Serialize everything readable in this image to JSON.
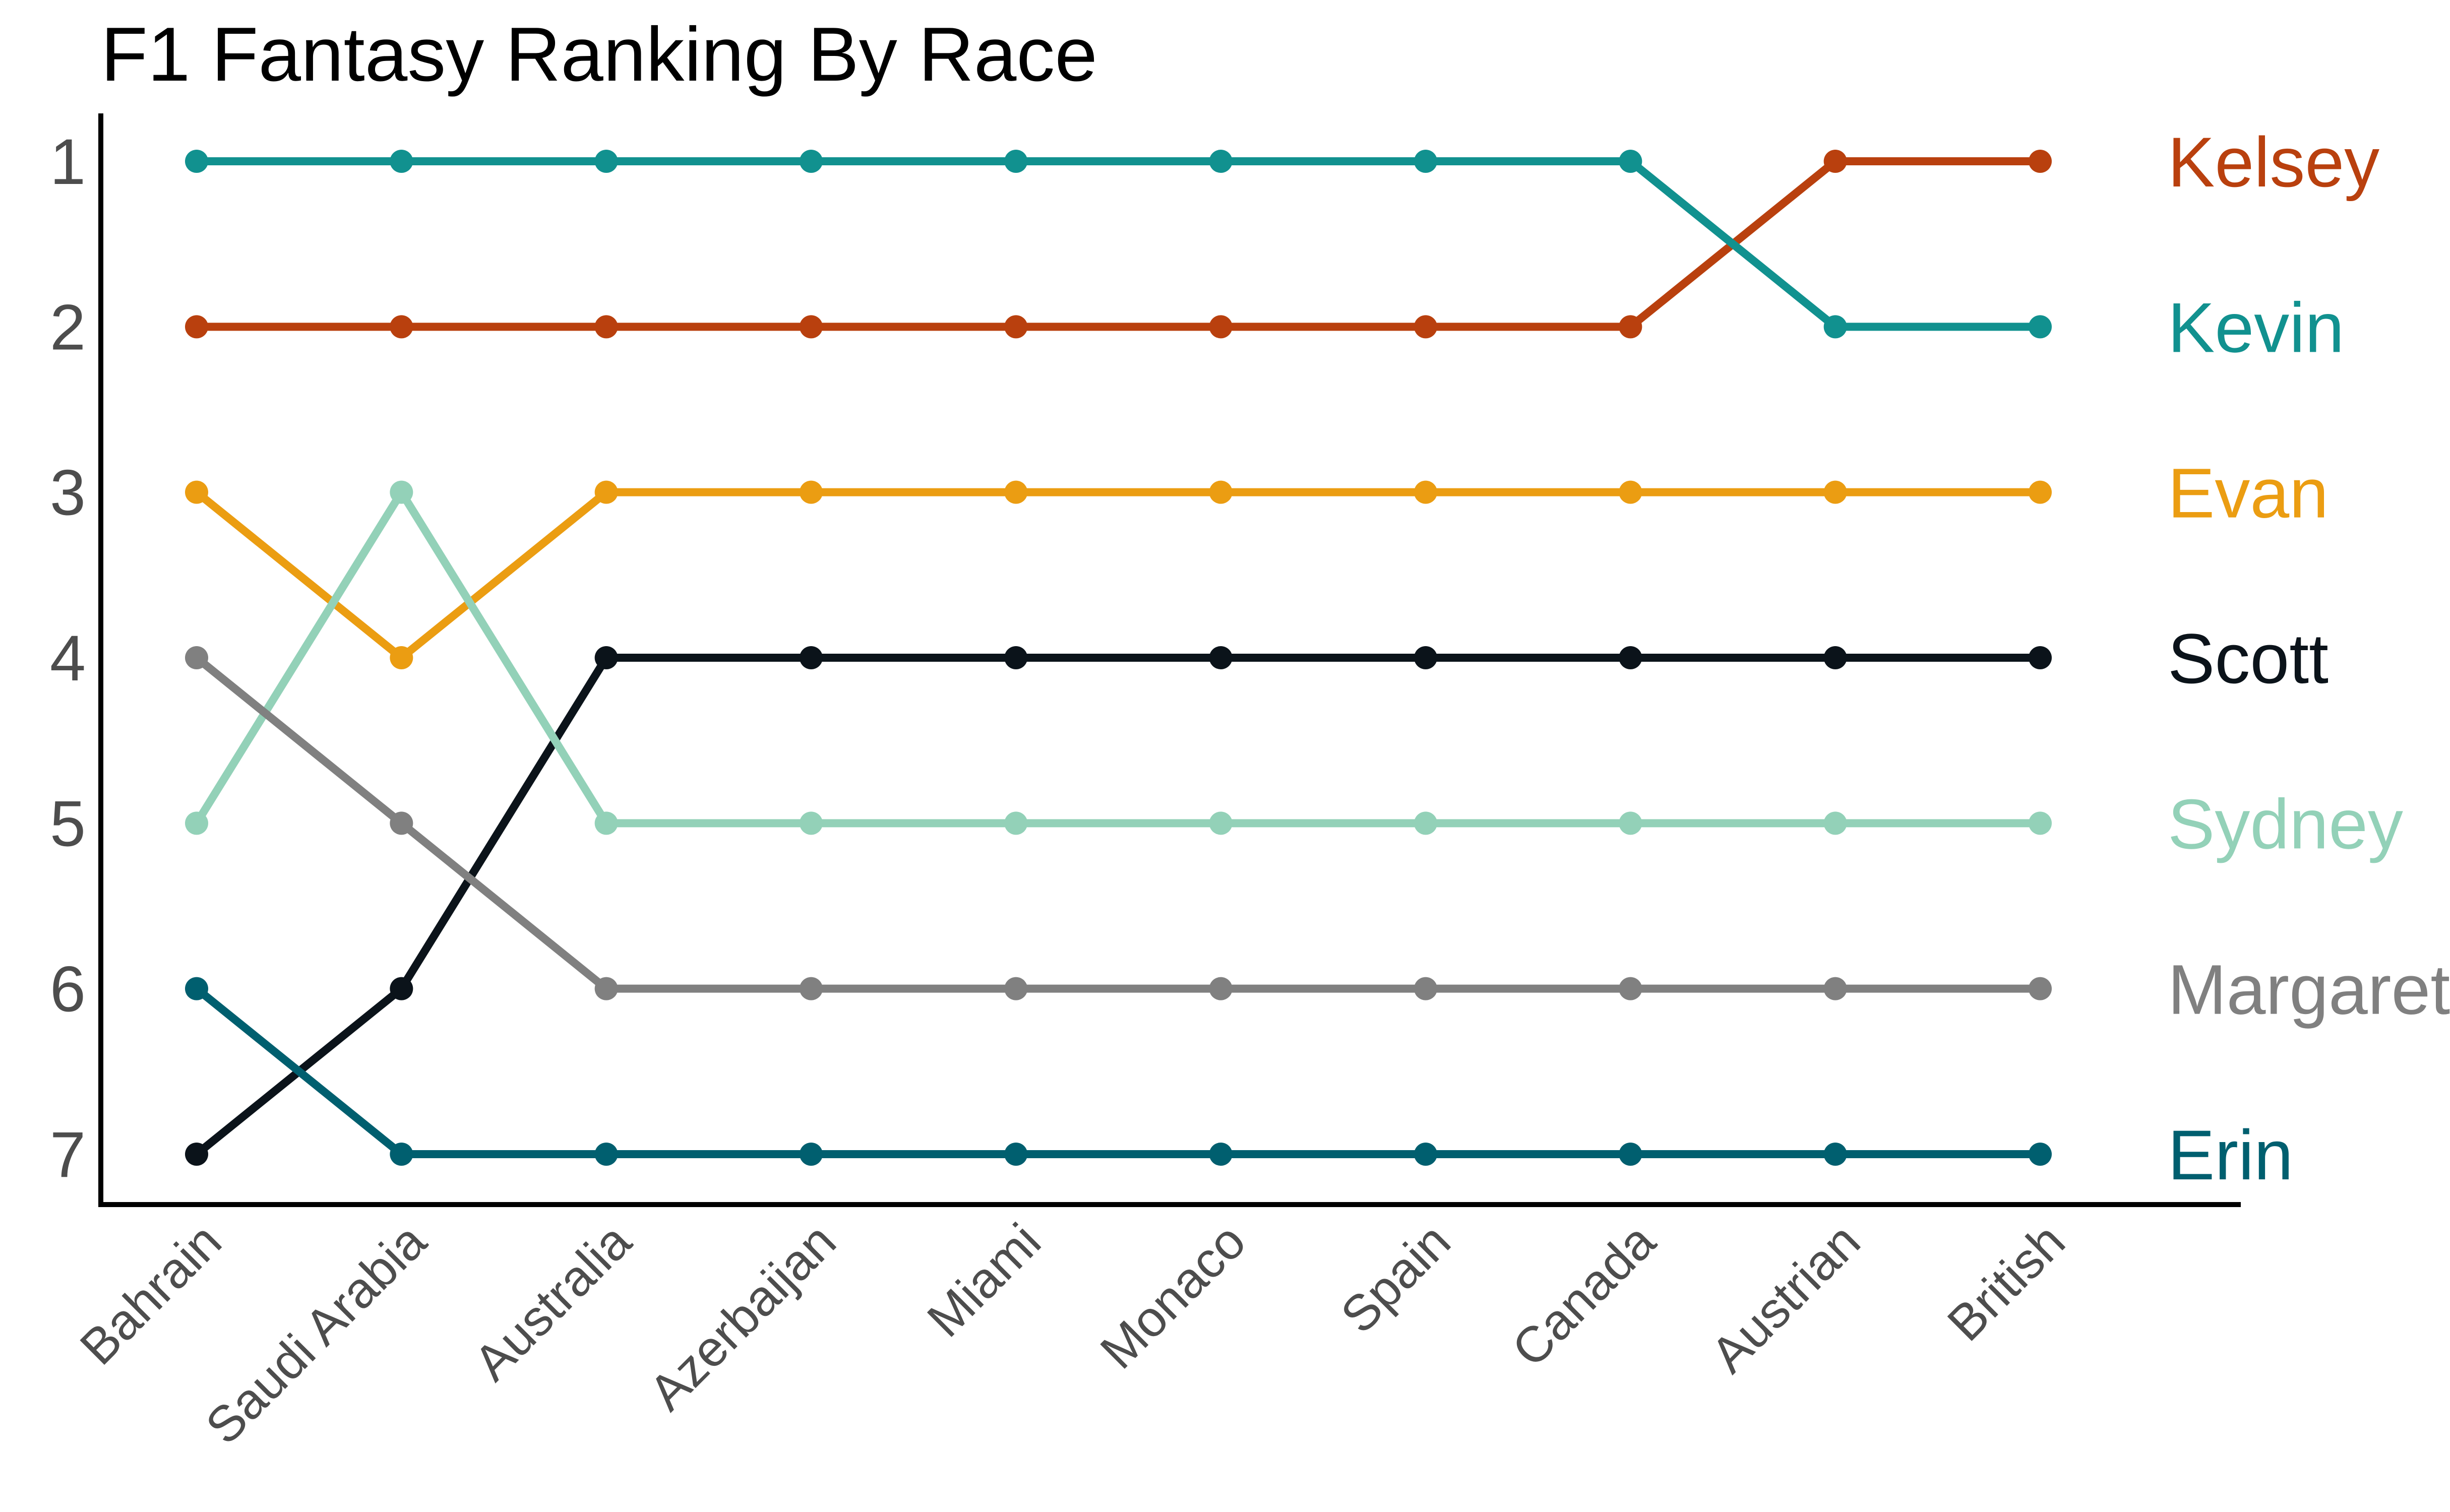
{
  "chart_data": {
    "type": "line",
    "title": "F1 Fantasy Ranking By Race",
    "xlabel": "",
    "ylabel": "",
    "categories": [
      "Bahrain",
      "Saudi Arabia",
      "Australia",
      "Azerbaijan",
      "Miami",
      "Monaco",
      "Spain",
      "Canada",
      "Austrian",
      "British"
    ],
    "ylim": [
      1,
      7
    ],
    "y_reversed": true,
    "y_ticks": [
      "1",
      "2",
      "3",
      "4",
      "5",
      "6",
      "7"
    ],
    "grid": false,
    "legend": "direct labels at right end of lines",
    "series": [
      {
        "name": "Kelsey",
        "color": "#b9400e",
        "values": [
          2,
          2,
          2,
          2,
          2,
          2,
          2,
          2,
          1,
          1
        ]
      },
      {
        "name": "Kevin",
        "color": "#11918f",
        "values": [
          1,
          1,
          1,
          1,
          1,
          1,
          1,
          1,
          2,
          2
        ]
      },
      {
        "name": "Evan",
        "color": "#eb9d12",
        "values": [
          3,
          4,
          3,
          3,
          3,
          3,
          3,
          3,
          3,
          3
        ]
      },
      {
        "name": "Scott",
        "color": "#0b131a",
        "values": [
          7,
          6,
          4,
          4,
          4,
          4,
          4,
          4,
          4,
          4
        ]
      },
      {
        "name": "Sydney",
        "color": "#93d1b8",
        "values": [
          5,
          3,
          5,
          5,
          5,
          5,
          5,
          5,
          5,
          5
        ]
      },
      {
        "name": "Margaret",
        "color": "#808080",
        "values": [
          4,
          5,
          6,
          6,
          6,
          6,
          6,
          6,
          6,
          6
        ]
      },
      {
        "name": "Erin",
        "color": "#005f6f",
        "values": [
          6,
          7,
          7,
          7,
          7,
          7,
          7,
          7,
          7,
          7
        ]
      }
    ]
  }
}
